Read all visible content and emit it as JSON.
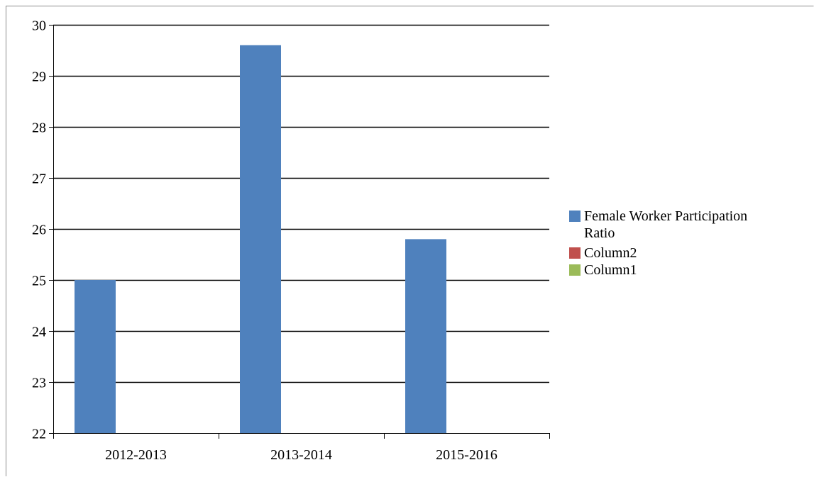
{
  "chart_data": {
    "type": "bar",
    "categories": [
      "2012-2013",
      "2013-2014",
      "2015-2016"
    ],
    "series": [
      {
        "name": "Female Worker Participation Ratio",
        "values": [
          25.0,
          29.6,
          25.8
        ],
        "color": "#4f81bd"
      },
      {
        "name": "Column2",
        "values": [
          null,
          null,
          null
        ],
        "color": "#c0504d"
      },
      {
        "name": "Column1",
        "values": [
          null,
          null,
          null
        ],
        "color": "#9bbb59"
      }
    ],
    "ylim": [
      22,
      30
    ],
    "yticks": [
      22,
      23,
      24,
      25,
      26,
      27,
      28,
      29,
      30
    ],
    "grid": true,
    "legend_position": "right",
    "legend": {
      "entries": [
        {
          "lines": [
            "Female Worker Participation",
            "Ratio"
          ],
          "color": "#4f81bd"
        },
        {
          "lines": [
            "Column2"
          ],
          "color": "#c0504d"
        },
        {
          "lines": [
            "Column1"
          ],
          "color": "#9bbb59"
        }
      ]
    }
  }
}
